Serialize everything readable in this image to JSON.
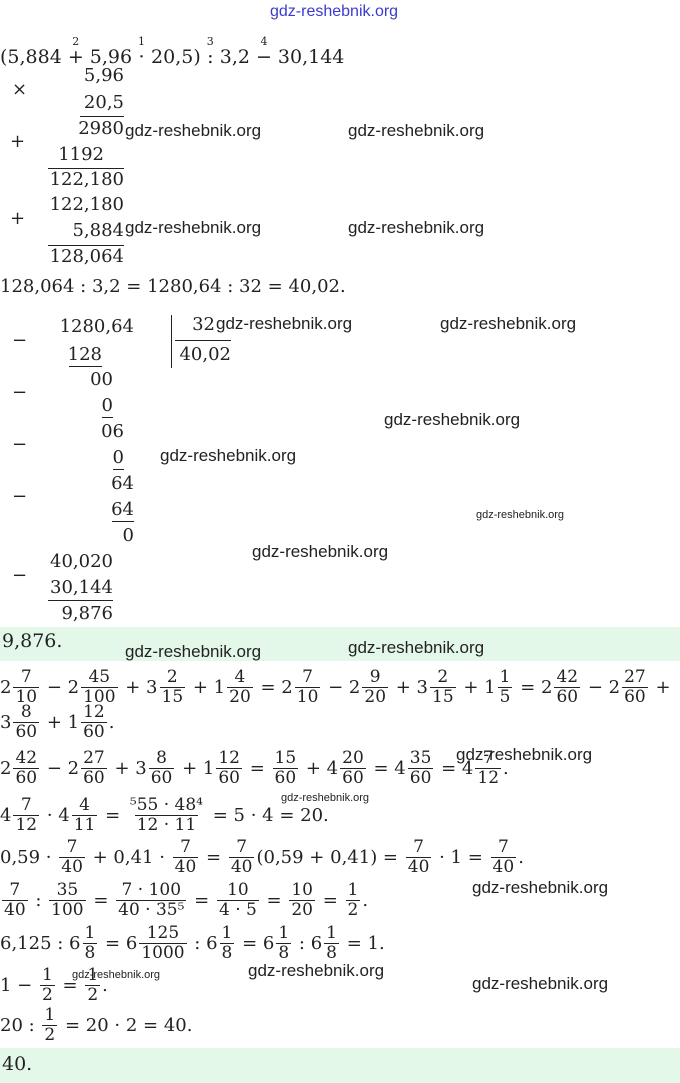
{
  "expression": {
    "parts": [
      "(5,884",
      "+",
      "5,96",
      "·",
      "20,5)",
      ":",
      "3,2",
      "−",
      "30,144"
    ],
    "order": [
      "2",
      "1",
      "3",
      "4"
    ]
  },
  "multiplication": {
    "times": "×",
    "plus_signs": [
      "+",
      "+"
    ],
    "rows": [
      "5,96",
      "20,5",
      "2980",
      "1192",
      "122,180",
      "122,180",
      "5,884",
      "128,064"
    ]
  },
  "division_sentence": "128,064 : 3,2 = 1280,64 : 32 = 40,02.",
  "division": {
    "dividend": "1280,64",
    "divisor": "32",
    "quotient": "40,02",
    "steps": [
      "128",
      "00",
      "0",
      "06",
      "0",
      "64",
      "64",
      "0"
    ],
    "minus_signs": [
      "−",
      "−",
      "−",
      "−"
    ]
  },
  "subtraction": {
    "sign": "−",
    "rows": [
      "40,020",
      "30,144",
      "9,876"
    ]
  },
  "answer_1": "9,876.",
  "lines": [
    {
      "parts": [
        "2",
        {
          "n": "7",
          "d": "10"
        },
        " − 2",
        {
          "n": "45",
          "d": "100"
        },
        " + 3",
        {
          "n": "2",
          "d": "15"
        },
        " + 1",
        {
          "n": "4",
          "d": "20"
        },
        " = 2",
        {
          "n": "7",
          "d": "10"
        },
        " − 2",
        {
          "n": "9",
          "d": "20"
        },
        " + 3",
        {
          "n": "2",
          "d": "15"
        },
        " + 1",
        {
          "n": "1",
          "d": "5"
        },
        " = 2",
        {
          "n": "42",
          "d": "60"
        },
        " − 2",
        {
          "n": "27",
          "d": "60"
        },
        " +"
      ]
    },
    {
      "parts": [
        "3",
        {
          "n": "8",
          "d": "60"
        },
        " + 1",
        {
          "n": "12",
          "d": "60"
        },
        "."
      ]
    },
    {
      "parts": [
        "2",
        {
          "n": "42",
          "d": "60"
        },
        " − 2",
        {
          "n": "27",
          "d": "60"
        },
        " + 3",
        {
          "n": "8",
          "d": "60"
        },
        " + 1",
        {
          "n": "12",
          "d": "60"
        },
        " = ",
        {
          "n": "15",
          "d": "60"
        },
        " + 4",
        {
          "n": "20",
          "d": "60"
        },
        " = 4",
        {
          "n": "35",
          "d": "60"
        },
        " = 4",
        {
          "n": "7",
          "d": "12"
        },
        "."
      ]
    },
    {
      "parts": [
        "4",
        {
          "n": "7",
          "d": "12"
        },
        " · 4",
        {
          "n": "4",
          "d": "11"
        },
        " = ",
        {
          "n": "⁵55 · 48⁴",
          "d": "12 · 11"
        },
        " = 5 · 4 = 20."
      ]
    },
    {
      "parts": [
        "0,59 · ",
        {
          "n": "7",
          "d": "40"
        },
        " + 0,41 · ",
        {
          "n": "7",
          "d": "40"
        },
        " = ",
        {
          "n": "7",
          "d": "40"
        },
        "(0,59 + 0,41) = ",
        {
          "n": "7",
          "d": "40"
        },
        " · 1 = ",
        {
          "n": "7",
          "d": "40"
        },
        "."
      ]
    },
    {
      "parts": [
        {
          "n": "7",
          "d": "40"
        },
        " : ",
        {
          "n": "35",
          "d": "100"
        },
        " = ",
        {
          "n": "7 · 100",
          "d": "40 · 35⁵"
        },
        " = ",
        {
          "n": "10",
          "d": "4 · 5"
        },
        " = ",
        {
          "n": "10",
          "d": "20"
        },
        " = ",
        {
          "n": "1",
          "d": "2"
        },
        "."
      ]
    },
    {
      "parts": [
        "6,125 : 6",
        {
          "n": "1",
          "d": "8"
        },
        " = 6",
        {
          "n": "125",
          "d": "1000"
        },
        " : 6",
        {
          "n": "1",
          "d": "8"
        },
        " = 6",
        {
          "n": "1",
          "d": "8"
        },
        " : 6",
        {
          "n": "1",
          "d": "8"
        },
        " = 1."
      ]
    },
    {
      "parts": [
        "1 − ",
        {
          "n": "1",
          "d": "2"
        },
        " = ",
        {
          "n": "1",
          "d": "2"
        },
        "."
      ]
    },
    {
      "parts": [
        "20 : ",
        {
          "n": "1",
          "d": "2"
        },
        " = 20 · 2 = 40."
      ]
    }
  ],
  "answer_2": "40.",
  "watermarks": [
    "gdz-reshebnik.org",
    "gdz-reshebnik.org",
    "gdz-reshebnik.org",
    "gdz-reshebnik.org",
    "gdz-reshebnik.org",
    "gdz-reshebnik.org",
    "gdz-reshebnik.org",
    "gdz-reshebnik.org",
    "gdz-reshebnik.org",
    "gdz-reshebnik.org",
    "gdz-reshebnik.org",
    "gdz-reshebnik.org",
    "gdz-reshebnik.org",
    "gdz-reshebnik.org",
    "gdz-reshebnik.org",
    "gdz-reshebnik.org",
    "gdz-reshebnik.org",
    "gdz-reshebnik.org",
    "gdz-reshebnik.org"
  ]
}
